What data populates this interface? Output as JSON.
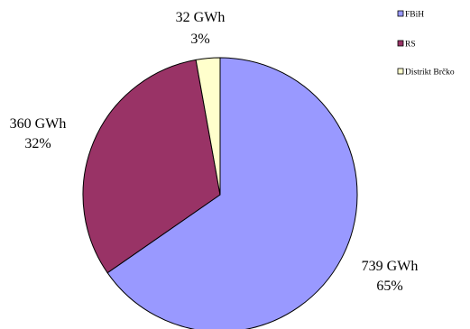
{
  "chart_data": {
    "type": "pie",
    "title": "",
    "categories": [
      "FBiH",
      "RS",
      "Distrikt Brčko"
    ],
    "values": [
      739,
      360,
      32
    ],
    "unit": "GWh",
    "percent_labels": [
      "65%",
      "32%",
      "3%"
    ],
    "value_labels": [
      "739 GWh",
      "360 GWh",
      "32 GWh"
    ],
    "colors": [
      "#9999FF",
      "#993366",
      "#FFFFCC"
    ],
    "start_angle_deg": 0,
    "direction": "clockwise",
    "legend_position": "top-right"
  }
}
